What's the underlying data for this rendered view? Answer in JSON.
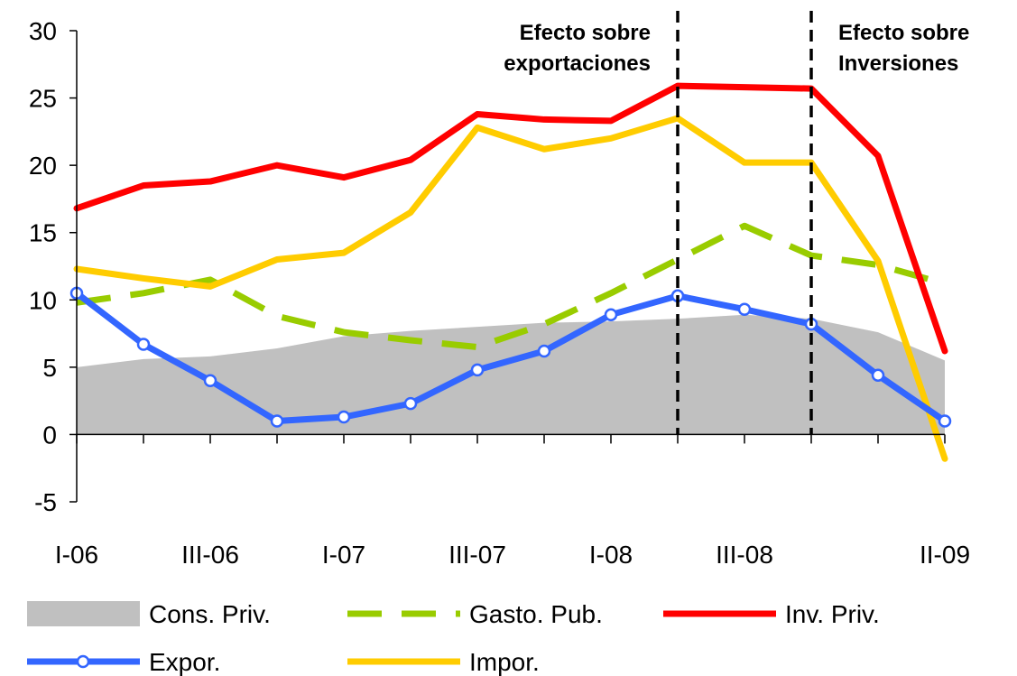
{
  "chart_data": {
    "type": "line",
    "categories": [
      "I-06",
      null,
      "III-06",
      null,
      "I-07",
      null,
      "III-07",
      null,
      "I-08",
      null,
      "III-08",
      null,
      null,
      "II-09"
    ],
    "ylim": [
      -5,
      30
    ],
    "yticks": [
      -5,
      0,
      5,
      10,
      15,
      20,
      25,
      30
    ],
    "series": [
      {
        "name": "Cons. Priv.",
        "kind": "area",
        "color": "#c0c0c0",
        "values": [
          5,
          5.6,
          5.8,
          6.4,
          7.3,
          7.7,
          8,
          8.3,
          8.4,
          8.6,
          8.9,
          8.6,
          7.6,
          5.5
        ]
      },
      {
        "name": "Gasto. Pub.",
        "kind": "dashed",
        "color": "#99cc00",
        "values": [
          9.8,
          10.5,
          11.5,
          8.8,
          7.6,
          7,
          6.5,
          8.2,
          10.5,
          13,
          15.5,
          13.3,
          12.6,
          11.2
        ]
      },
      {
        "name": "Inv. Priv.",
        "kind": "line",
        "color": "#ff0000",
        "values": [
          16.8,
          18.5,
          18.8,
          20,
          19.1,
          20.4,
          23.8,
          23.4,
          23.3,
          25.9,
          25.8,
          25.7,
          20.7,
          6.2
        ]
      },
      {
        "name": "Expor.",
        "kind": "markers",
        "color": "#3366ff",
        "values": [
          10.5,
          6.7,
          4,
          1,
          1.3,
          2.3,
          4.8,
          6.2,
          8.9,
          10.3,
          9.3,
          8.2,
          4.4,
          1
        ]
      },
      {
        "name": "Impor.",
        "kind": "line",
        "color": "#ffcc00",
        "values": [
          12.3,
          11.6,
          11,
          13,
          13.5,
          16.5,
          22.8,
          21.2,
          22,
          23.5,
          20.2,
          20.2,
          12.9,
          -1.8
        ]
      }
    ],
    "annotations": [
      {
        "lines": [
          "Efecto sobre",
          "exportaciones"
        ],
        "x": 9
      },
      {
        "lines": [
          "Efecto sobre",
          "Inversiones"
        ],
        "x": 11
      }
    ]
  }
}
